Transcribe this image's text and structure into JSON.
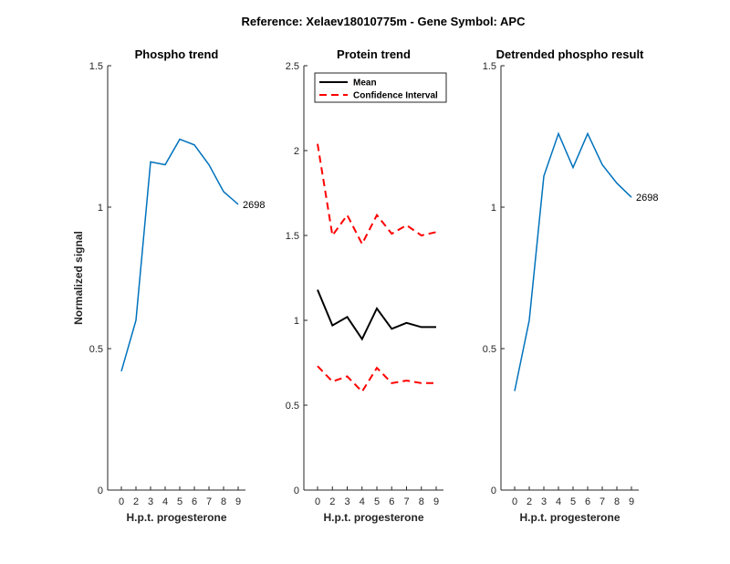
{
  "figure": {
    "suptitle": "Reference:  Xelaev18010775m - Gene Symbol:  APC"
  },
  "chart_data": [
    {
      "type": "line",
      "title": "Phospho trend",
      "xlabel": "H.p.t. progesterone",
      "ylabel": "Normalized signal",
      "x": [
        0,
        1,
        2,
        3,
        4,
        5,
        6,
        7,
        8
      ],
      "xticklabels": [
        "0",
        "2",
        "3",
        "4",
        "5",
        "6",
        "7",
        "8",
        "9"
      ],
      "ylim": [
        0,
        1.5
      ],
      "yticks": [
        0,
        0.5,
        1,
        1.5
      ],
      "yticklabels": [
        "0",
        "0.5",
        "1",
        "1.5"
      ],
      "grid": false,
      "series": [
        {
          "values": [
            0.42,
            0.6,
            1.16,
            1.15,
            1.24,
            1.22,
            1.15,
            1.055,
            1.01
          ],
          "color": "#0072BD",
          "style": "solid",
          "end_label": "2698"
        }
      ]
    },
    {
      "type": "line",
      "title": "Protein trend",
      "xlabel": "H.p.t. progesterone",
      "ylabel": "",
      "x": [
        0,
        1,
        2,
        3,
        4,
        5,
        6,
        7,
        8
      ],
      "xticklabels": [
        "0",
        "2",
        "3",
        "4",
        "5",
        "6",
        "7",
        "8",
        "9"
      ],
      "ylim": [
        0,
        2.5
      ],
      "yticks": [
        0,
        0.5,
        1,
        1.5,
        2,
        2.5
      ],
      "yticklabels": [
        "0",
        "0.5",
        "1",
        "1.5",
        "2",
        "2.5"
      ],
      "grid": false,
      "legend": {
        "position": "top-left",
        "entries": [
          "Mean",
          "Confidence Interval"
        ]
      },
      "series": [
        {
          "name": "Mean",
          "values": [
            1.18,
            0.97,
            1.02,
            0.89,
            1.07,
            0.95,
            0.985,
            0.96,
            0.96
          ],
          "color": "#000000",
          "style": "solid"
        },
        {
          "name": "Confidence Interval",
          "values": [
            2.04,
            1.5,
            1.62,
            1.45,
            1.62,
            1.51,
            1.56,
            1.5,
            1.52
          ],
          "color": "#ff0000",
          "style": "dashed"
        },
        {
          "name": "Confidence Interval",
          "values": [
            0.73,
            0.64,
            0.67,
            0.58,
            0.72,
            0.63,
            0.645,
            0.63,
            0.63
          ],
          "color": "#ff0000",
          "style": "dashed"
        }
      ]
    },
    {
      "type": "line",
      "title": "Detrended phospho result",
      "xlabel": "H.p.t. progesterone",
      "ylabel": "",
      "x": [
        0,
        1,
        2,
        3,
        4,
        5,
        6,
        7,
        8
      ],
      "xticklabels": [
        "0",
        "2",
        "3",
        "4",
        "5",
        "6",
        "7",
        "8",
        "9"
      ],
      "ylim": [
        0,
        1.5
      ],
      "yticks": [
        0,
        0.5,
        1,
        1.5
      ],
      "yticklabels": [
        "0",
        "0.5",
        "1",
        "1.5"
      ],
      "grid": false,
      "series": [
        {
          "values": [
            0.35,
            0.6,
            1.11,
            1.26,
            1.14,
            1.26,
            1.15,
            1.085,
            1.035
          ],
          "color": "#0072BD",
          "style": "solid",
          "end_label": "2698"
        }
      ]
    }
  ]
}
